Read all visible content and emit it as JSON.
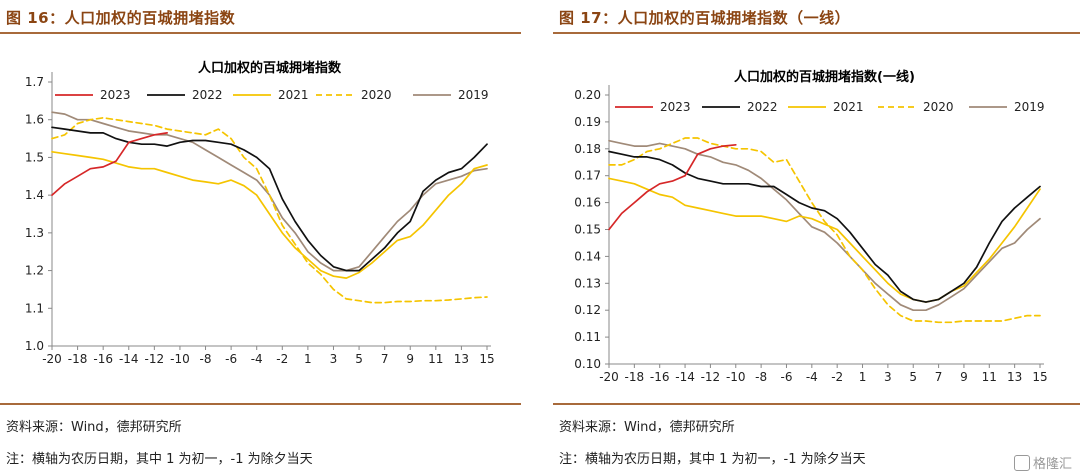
{
  "figures": [
    {
      "fig_title": "图 16：人口加权的百城拥堵指数",
      "source": "资料来源：Wind，德邦研究所",
      "note": "注：横轴为农历日期，其中 1 为初一，-1 为除夕当天"
    },
    {
      "fig_title": "图 17：人口加权的百城拥堵指数（一线）",
      "source": "资料来源：Wind，德邦研究所",
      "note": "注：横轴为农历日期，其中 1 为初一，-1 为除夕当天"
    }
  ],
  "watermark": "格隆汇",
  "chart_data": [
    {
      "type": "line",
      "title": "人口加权的百城拥堵指数",
      "x": [
        -20,
        -19,
        -18,
        -17,
        -16,
        -15,
        -14,
        -13,
        -12,
        -11,
        -10,
        -9,
        -8,
        -7,
        -6,
        -5,
        -4,
        -3,
        -2,
        -1,
        1,
        2,
        3,
        4,
        5,
        6,
        7,
        8,
        9,
        10,
        11,
        12,
        13,
        14,
        15
      ],
      "xticks": [
        "-20",
        "-18",
        "-16",
        "-14",
        "-12",
        "-10",
        "-8",
        "-6",
        "-4",
        "-2",
        "1",
        "3",
        "5",
        "7",
        "9",
        "11",
        "13",
        "15"
      ],
      "ylim": [
        1.0,
        1.7
      ],
      "yticks": [
        "1.0",
        "1.1",
        "1.2",
        "1.3",
        "1.4",
        "1.5",
        "1.6",
        "1.7"
      ],
      "legend_position": "top",
      "series": [
        {
          "name": "2023",
          "color": "#d62728",
          "dash": false,
          "values": [
            1.4,
            1.43,
            1.45,
            1.47,
            1.475,
            1.49,
            1.54,
            1.55,
            1.56,
            1.565,
            null,
            null,
            null,
            null,
            null,
            null,
            null,
            null,
            null,
            null,
            null,
            null,
            null,
            null,
            null,
            null,
            null,
            null,
            null,
            null,
            null,
            null,
            null,
            null,
            null
          ]
        },
        {
          "name": "2022",
          "color": "#111111",
          "dash": false,
          "values": [
            1.58,
            1.575,
            1.57,
            1.565,
            1.565,
            1.55,
            1.54,
            1.535,
            1.535,
            1.53,
            1.54,
            1.545,
            1.545,
            1.54,
            1.535,
            1.52,
            1.5,
            1.47,
            1.39,
            1.33,
            1.28,
            1.24,
            1.21,
            1.2,
            1.2,
            1.23,
            1.26,
            1.3,
            1.33,
            1.41,
            1.44,
            1.46,
            1.47,
            1.5,
            1.535
          ]
        },
        {
          "name": "2021",
          "color": "#f5c400",
          "dash": false,
          "values": [
            1.515,
            1.51,
            1.505,
            1.5,
            1.495,
            1.485,
            1.475,
            1.47,
            1.47,
            1.46,
            1.45,
            1.44,
            1.435,
            1.43,
            1.44,
            1.425,
            1.4,
            1.35,
            1.3,
            1.26,
            1.23,
            1.2,
            1.185,
            1.18,
            1.195,
            1.22,
            1.25,
            1.28,
            1.29,
            1.32,
            1.36,
            1.4,
            1.43,
            1.47,
            1.48
          ]
        },
        {
          "name": "2020",
          "color": "#f5c400",
          "dash": true,
          "values": [
            1.55,
            1.56,
            1.59,
            1.6,
            1.605,
            1.6,
            1.595,
            1.59,
            1.585,
            1.575,
            1.57,
            1.565,
            1.56,
            1.575,
            1.55,
            1.5,
            1.47,
            1.4,
            1.32,
            1.27,
            1.22,
            1.19,
            1.15,
            1.125,
            1.12,
            1.115,
            1.115,
            1.118,
            1.118,
            1.12,
            1.12,
            1.122,
            1.125,
            1.128,
            1.13
          ]
        },
        {
          "name": "2019",
          "color": "#a08a78",
          "dash": false,
          "values": [
            1.62,
            1.615,
            1.6,
            1.6,
            1.59,
            1.58,
            1.57,
            1.565,
            1.56,
            1.56,
            1.55,
            1.54,
            1.52,
            1.5,
            1.48,
            1.46,
            1.44,
            1.4,
            1.34,
            1.3,
            1.25,
            1.22,
            1.2,
            1.2,
            1.21,
            1.25,
            1.29,
            1.33,
            1.36,
            1.4,
            1.43,
            1.44,
            1.45,
            1.465,
            1.47
          ]
        }
      ]
    },
    {
      "type": "line",
      "title": "人口加权的百城拥堵指数(一线)",
      "x": [
        -20,
        -19,
        -18,
        -17,
        -16,
        -15,
        -14,
        -13,
        -12,
        -11,
        -10,
        -9,
        -8,
        -7,
        -6,
        -5,
        -4,
        -3,
        -2,
        -1,
        1,
        2,
        3,
        4,
        5,
        6,
        7,
        8,
        9,
        10,
        11,
        12,
        13,
        14,
        15
      ],
      "xticks": [
        "-20",
        "-18",
        "-16",
        "-14",
        "-12",
        "-10",
        "-8",
        "-6",
        "-4",
        "-2",
        "1",
        "3",
        "5",
        "7",
        "9",
        "11",
        "13",
        "15"
      ],
      "ylim": [
        0.1,
        0.2
      ],
      "yticks": [
        "0.10",
        "0.11",
        "0.12",
        "0.13",
        "0.14",
        "0.15",
        "0.16",
        "0.17",
        "0.18",
        "0.19",
        "0.20"
      ],
      "legend_position": "top",
      "series": [
        {
          "name": "2023",
          "color": "#d62728",
          "dash": false,
          "values": [
            0.15,
            0.156,
            0.16,
            0.164,
            0.167,
            0.168,
            0.17,
            0.178,
            0.18,
            0.181,
            0.1815,
            null,
            null,
            null,
            null,
            null,
            null,
            null,
            null,
            null,
            null,
            null,
            null,
            null,
            null,
            null,
            null,
            null,
            null,
            null,
            null,
            null,
            null,
            null,
            null
          ]
        },
        {
          "name": "2022",
          "color": "#111111",
          "dash": false,
          "values": [
            0.179,
            0.178,
            0.177,
            0.177,
            0.176,
            0.174,
            0.171,
            0.169,
            0.168,
            0.167,
            0.167,
            0.167,
            0.166,
            0.166,
            0.163,
            0.16,
            0.158,
            0.157,
            0.154,
            0.149,
            0.143,
            0.137,
            0.133,
            0.127,
            0.124,
            0.123,
            0.124,
            0.127,
            0.13,
            0.136,
            0.145,
            0.153,
            0.158,
            0.162,
            0.166
          ]
        },
        {
          "name": "2021",
          "color": "#f5c400",
          "dash": false,
          "values": [
            0.169,
            0.168,
            0.167,
            0.165,
            0.163,
            0.162,
            0.159,
            0.158,
            0.157,
            0.156,
            0.155,
            0.155,
            0.155,
            0.154,
            0.153,
            0.155,
            0.154,
            0.152,
            0.15,
            0.145,
            0.14,
            0.135,
            0.13,
            0.126,
            0.124,
            0.123,
            0.124,
            0.127,
            0.129,
            0.134,
            0.139,
            0.145,
            0.151,
            0.158,
            0.165
          ]
        },
        {
          "name": "2020",
          "color": "#f5c400",
          "dash": true,
          "values": [
            0.174,
            0.174,
            0.176,
            0.179,
            0.18,
            0.182,
            0.184,
            0.184,
            0.182,
            0.181,
            0.18,
            0.18,
            0.179,
            0.175,
            0.176,
            0.168,
            0.16,
            0.153,
            0.148,
            0.14,
            0.135,
            0.128,
            0.122,
            0.118,
            0.116,
            0.116,
            0.1155,
            0.1155,
            0.116,
            0.116,
            0.116,
            0.116,
            0.117,
            0.118,
            0.118
          ]
        },
        {
          "name": "2019",
          "color": "#a08a78",
          "dash": false,
          "values": [
            0.183,
            0.182,
            0.181,
            0.181,
            0.182,
            0.181,
            0.18,
            0.178,
            0.177,
            0.175,
            0.174,
            0.172,
            0.169,
            0.165,
            0.161,
            0.156,
            0.151,
            0.149,
            0.145,
            0.14,
            0.135,
            0.13,
            0.126,
            0.122,
            0.12,
            0.12,
            0.122,
            0.125,
            0.128,
            0.133,
            0.138,
            0.143,
            0.145,
            0.15,
            0.154
          ]
        }
      ]
    }
  ]
}
